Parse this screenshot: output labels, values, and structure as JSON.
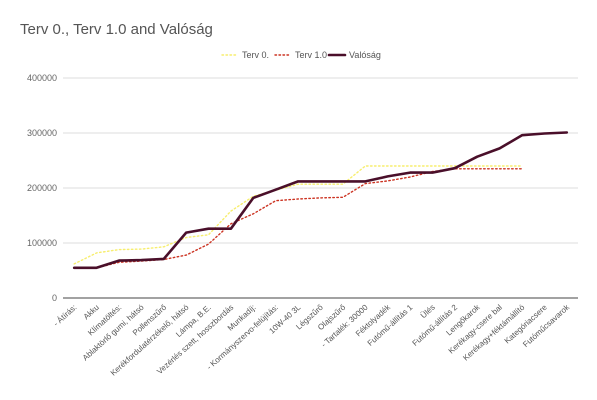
{
  "chart_data": {
    "type": "line",
    "title": "Terv 0., Terv 1.0 and Valóság",
    "xlabel": "",
    "ylabel": "",
    "ylim": [
      0,
      400000
    ],
    "yticks": [
      "0",
      "100000",
      "200000",
      "300000",
      "400000"
    ],
    "grid": true,
    "legend_position": "top-center",
    "categories": [
      "- Átírás:",
      "Akku",
      "Klímatöltés:",
      "Ablaktörlő gumi, hátsó",
      "Pollenszűrő",
      "Kerékfordulatérzékelő, hátsó",
      "Lámpa, B.E.",
      "Vezérlés szett, hosszbordás",
      "Munkadíj:",
      "- Kormányszervo-felújítás:",
      "10W-40 3L",
      "Légszűrő",
      "Olajszűrő",
      "- Tartalék: 30000",
      "Féktolyadék",
      "Futómű-állítás 1",
      "Ülés",
      "Futómű-állítás 2",
      "Lengőkarok",
      "Kerékagy-csere bal",
      "Kerékagy+féktámállító",
      "Kategóriacsere",
      "Futóműcsavarok"
    ],
    "series": [
      {
        "name": "Terv 0.",
        "color": "#f7ee6e",
        "style": "dotted",
        "values": [
          62000,
          82000,
          88000,
          89000,
          93000,
          110000,
          115000,
          158000,
          185000,
          196000,
          207000,
          207000,
          207000,
          240000,
          240000,
          240000,
          240000,
          240000,
          240000,
          240000,
          240000,
          null,
          null
        ]
      },
      {
        "name": "Terv 1.0",
        "color": "#cc3322",
        "style": "dotted",
        "values": [
          55000,
          55000,
          65000,
          67000,
          70000,
          78000,
          98000,
          135000,
          153000,
          177000,
          180000,
          182000,
          183000,
          208000,
          213000,
          220000,
          230000,
          235000,
          235000,
          235000,
          235000,
          null,
          null
        ]
      },
      {
        "name": "Valóság",
        "color": "#4a0f2a",
        "style": "solid",
        "values": [
          55000,
          55000,
          68000,
          69000,
          71000,
          119000,
          126000,
          126000,
          182000,
          197000,
          212000,
          212000,
          212000,
          212000,
          221000,
          228000,
          228000,
          236000,
          257000,
          272000,
          296000,
          299000,
          301000
        ]
      }
    ]
  }
}
